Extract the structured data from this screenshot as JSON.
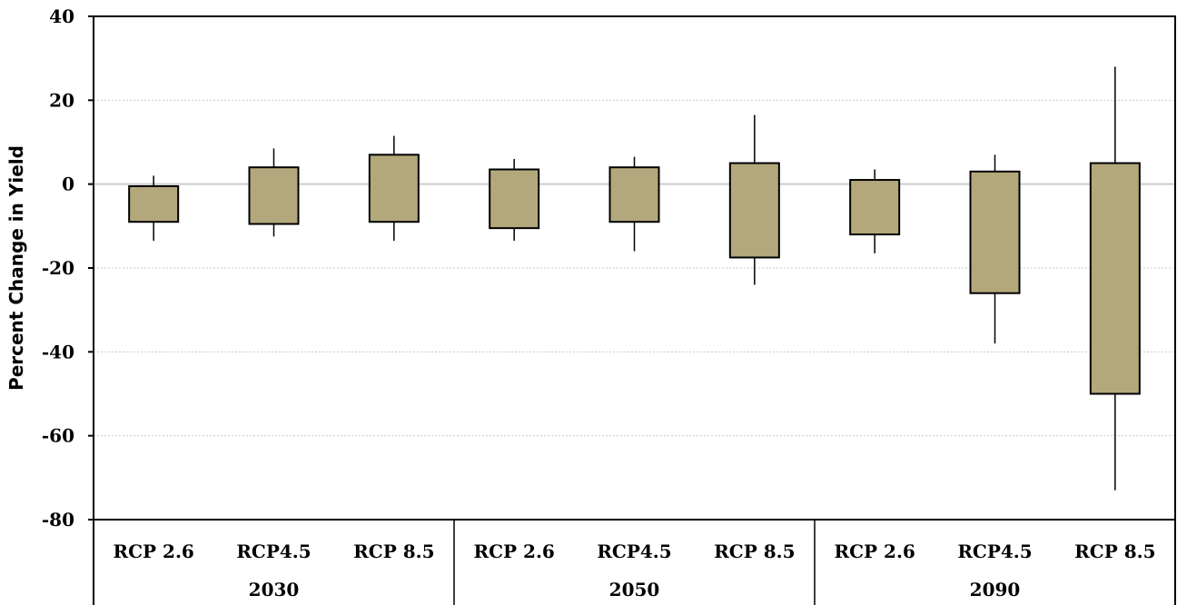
{
  "chart_data": {
    "type": "box",
    "ylabel": "Percent Change in Yield",
    "xlabel": "",
    "title": "",
    "ylim": [
      -80,
      40
    ],
    "yticks": [
      40,
      20,
      0,
      -20,
      -40,
      -60,
      -80
    ],
    "ytick_labels": [
      "40",
      "20",
      "0",
      "-20",
      "-40",
      "-60",
      "-80"
    ],
    "grid": "horizontal dotted",
    "colors": {
      "box_fill": "#b3a87c",
      "box_stroke": "#000000",
      "gridline": "#c8c8c8",
      "zero_line": "#cccccc"
    },
    "groups": [
      {
        "label": "2030",
        "items": [
          {
            "label": "RCP 2.6",
            "whisker_low": -13.5,
            "box_low": -9,
            "box_high": -0.5,
            "whisker_high": 2
          },
          {
            "label": "RCP4.5",
            "whisker_low": -12.5,
            "box_low": -9.5,
            "box_high": 4,
            "whisker_high": 8.5
          },
          {
            "label": "RCP 8.5",
            "whisker_low": -13.5,
            "box_low": -9,
            "box_high": 7,
            "whisker_high": 11.5
          }
        ]
      },
      {
        "label": "2050",
        "items": [
          {
            "label": "RCP 2.6",
            "whisker_low": -13.5,
            "box_low": -10.5,
            "box_high": 3.5,
            "whisker_high": 6
          },
          {
            "label": "RCP4.5",
            "whisker_low": -16,
            "box_low": -9,
            "box_high": 4,
            "whisker_high": 6.5
          },
          {
            "label": "RCP 8.5",
            "whisker_low": -24,
            "box_low": -17.5,
            "box_high": 5,
            "whisker_high": 16.5
          }
        ]
      },
      {
        "label": "2090",
        "items": [
          {
            "label": "RCP 2.6",
            "whisker_low": -16.5,
            "box_low": -12,
            "box_high": 1,
            "whisker_high": 3.5
          },
          {
            "label": "RCP4.5",
            "whisker_low": -38,
            "box_low": -26,
            "box_high": 3,
            "whisker_high": 7
          },
          {
            "label": "RCP 8.5",
            "whisker_low": -73,
            "box_low": -50,
            "box_high": 5,
            "whisker_high": 28
          }
        ]
      }
    ]
  }
}
